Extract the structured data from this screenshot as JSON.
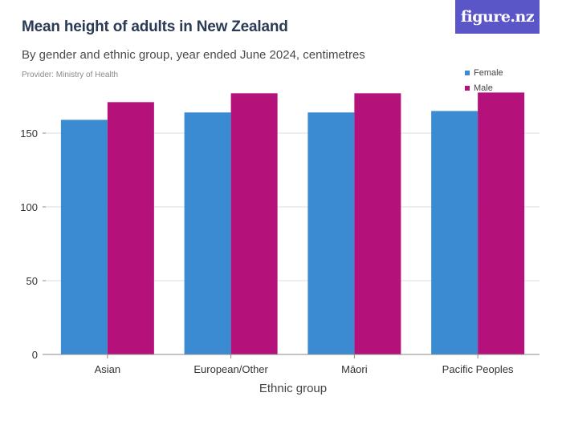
{
  "header": {
    "title": "Mean height of adults in New Zealand",
    "subtitle": "By gender and ethnic group, year ended June 2024, centimetres",
    "provider": "Provider: Ministry of Health"
  },
  "brand": {
    "logo_text": "figure.nz",
    "logo_color": "#5a56c8"
  },
  "chart_data": {
    "type": "bar",
    "title": "Mean height of adults in New Zealand",
    "subtitle": "By gender and ethnic group, year ended June 2024, centimetres",
    "xlabel": "Ethnic group",
    "ylabel": "",
    "ylim": [
      0,
      175
    ],
    "yticks": [
      0,
      50,
      100,
      150
    ],
    "grid": true,
    "legend_position": "top-right",
    "categories": [
      "Asian",
      "European/Other",
      "Māori",
      "Pacific Peoples"
    ],
    "series": [
      {
        "name": "Female",
        "color": "#3b8bd3",
        "values": [
          159,
          164,
          164,
          165
        ]
      },
      {
        "name": "Male",
        "color": "#b5117a",
        "values": [
          171,
          177,
          177,
          177.5
        ]
      }
    ]
  }
}
